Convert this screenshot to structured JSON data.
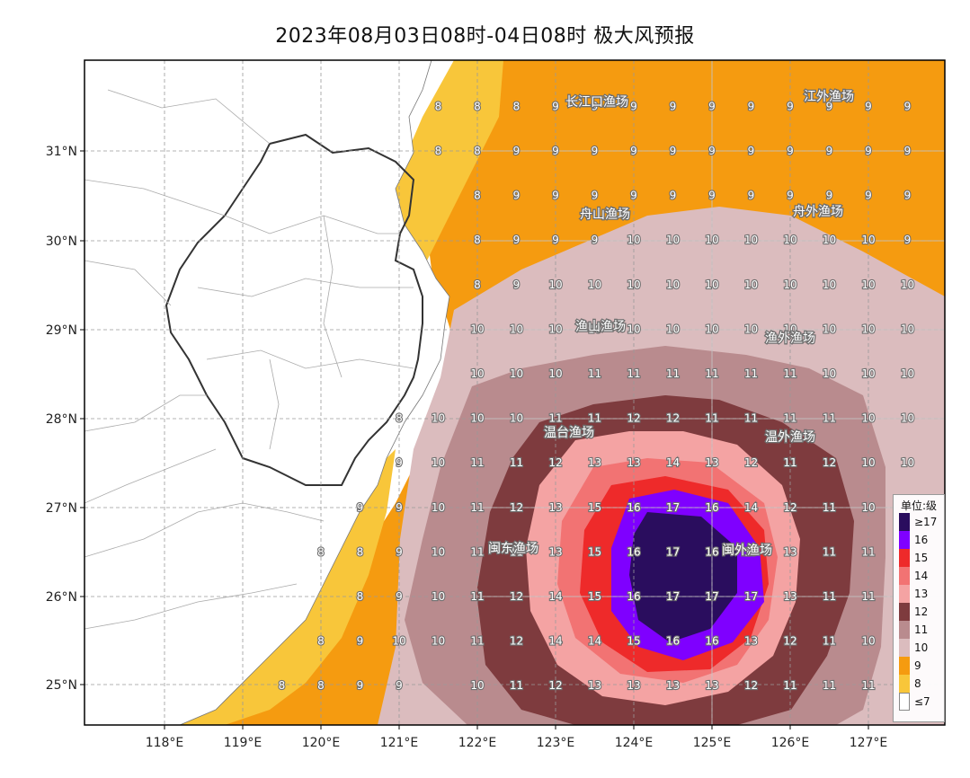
{
  "title": "2023年08月03日08时-04日08时 极大风预报",
  "lon_labels": [
    "118°E",
    "119°E",
    "120°E",
    "121°E",
    "122°E",
    "123°E",
    "124°E",
    "125°E",
    "126°E",
    "127°E"
  ],
  "lat_labels": [
    "31°N",
    "30°N",
    "29°N",
    "28°N",
    "27°N",
    "26°N",
    "25°N"
  ],
  "legend": {
    "title": "单位:级",
    "items": [
      {
        "label": "≥17",
        "color": "#2a0d5e"
      },
      {
        "label": "16",
        "color": "#7f00ff"
      },
      {
        "label": "15",
        "color": "#ee2a2a"
      },
      {
        "label": "14",
        "color": "#f27373"
      },
      {
        "label": "13",
        "color": "#f4a3a3"
      },
      {
        "label": "12",
        "color": "#7e3b3e"
      },
      {
        "label": "11",
        "color": "#b98b8e"
      },
      {
        "label": "10",
        "color": "#dbbcbe"
      },
      {
        "label": "9",
        "color": "#f59b10"
      },
      {
        "label": "8",
        "color": "#f8c63a"
      },
      {
        "label": "≤7",
        "color": "#ffffff"
      }
    ]
  },
  "zones": [
    "长江口渔场",
    "江外渔场",
    "舟山渔场",
    "舟外渔场",
    "渔山渔场",
    "渔外渔场",
    "温台渔场",
    "温外渔场",
    "闽东渔场",
    "闽外渔场"
  ],
  "grid_values": [
    {
      "lon": 121.5,
      "v": [
        8,
        null,
        null,
        null,
        null,
        null,
        null,
        null,
        null,
        null,
        null,
        null,
        null,
        null
      ]
    },
    {
      "lon": 122.0,
      "v": [
        8,
        8,
        8,
        8,
        8,
        10,
        10,
        10,
        11,
        11,
        11,
        11,
        11,
        10
      ]
    },
    {
      "lon": 122.5,
      "v": [
        8,
        9,
        9,
        9,
        9,
        10,
        10,
        10,
        11,
        12,
        11,
        12,
        12,
        11
      ]
    },
    {
      "lon": 123.0,
      "v": [
        9,
        9,
        9,
        9,
        10,
        10,
        10,
        11,
        12,
        13,
        13,
        14,
        14,
        12
      ]
    },
    {
      "lon": 123.5,
      "v": [
        9,
        9,
        9,
        9,
        10,
        10,
        11,
        11,
        13,
        15,
        15,
        15,
        14,
        13
      ]
    },
    {
      "lon": 124.0,
      "v": [
        9,
        9,
        9,
        10,
        10,
        10,
        11,
        12,
        13,
        16,
        16,
        16,
        15,
        13
      ]
    },
    {
      "lon": 124.5,
      "v": [
        9,
        9,
        9,
        10,
        10,
        10,
        11,
        12,
        14,
        17,
        17,
        17,
        16,
        13
      ]
    },
    {
      "lon": 125.0,
      "v": [
        9,
        9,
        9,
        10,
        10,
        10,
        11,
        11,
        13,
        16,
        16,
        17,
        16,
        13
      ]
    },
    {
      "lon": 125.5,
      "v": [
        9,
        9,
        9,
        10,
        10,
        10,
        11,
        11,
        12,
        14,
        15,
        17,
        13,
        12
      ]
    },
    {
      "lon": 126.0,
      "v": [
        9,
        9,
        9,
        10,
        10,
        10,
        11,
        11,
        11,
        12,
        13,
        13,
        12,
        11
      ]
    },
    {
      "lon": 126.5,
      "v": [
        9,
        9,
        9,
        10,
        10,
        10,
        10,
        11,
        12,
        11,
        11,
        11,
        11,
        11
      ]
    },
    {
      "lon": 127.0,
      "v": [
        9,
        9,
        9,
        10,
        10,
        10,
        10,
        10,
        10,
        10,
        11,
        11,
        10,
        11
      ]
    },
    {
      "lon": 127.5,
      "v": [
        9,
        9,
        9,
        9,
        10,
        10,
        10,
        10,
        10,
        null,
        null,
        null,
        null,
        null
      ]
    }
  ],
  "grid_lats": [
    31.5,
    31.0,
    30.5,
    30.0,
    29.5,
    29.0,
    28.5,
    28.0,
    27.5,
    27.0,
    26.5,
    26.0,
    25.5,
    25.0
  ],
  "west_column": [
    {
      "lat": 28.0,
      "lon": 121.0,
      "v": 8
    },
    {
      "lat": 27.5,
      "lon": 121.0,
      "v": 9
    },
    {
      "lat": 27.0,
      "lon": 120.5,
      "v": 9
    },
    {
      "lat": 27.0,
      "lon": 121.0,
      "v": 9
    },
    {
      "lat": 26.5,
      "lon": 120.0,
      "v": 8
    },
    {
      "lat": 26.5,
      "lon": 120.5,
      "v": 8
    },
    {
      "lat": 26.5,
      "lon": 121.0,
      "v": 9
    },
    {
      "lat": 26.0,
      "lon": 120.5,
      "v": 8
    },
    {
      "lat": 26.0,
      "lon": 121.0,
      "v": 9
    },
    {
      "lat": 25.5,
      "lon": 120.0,
      "v": 8
    },
    {
      "lat": 25.5,
      "lon": 120.5,
      "v": 9
    },
    {
      "lat": 25.5,
      "lon": 121.0,
      "v": 10
    },
    {
      "lat": 25.0,
      "lon": 119.5,
      "v": 8
    },
    {
      "lat": 25.0,
      "lon": 120.0,
      "v": 8
    },
    {
      "lat": 25.0,
      "lon": 120.5,
      "v": 9
    },
    {
      "lat": 25.0,
      "lon": 121.0,
      "v": 9
    },
    {
      "lat": 28.0,
      "lon": 121.5,
      "v": 10
    },
    {
      "lat": 27.5,
      "lon": 121.5,
      "v": 10
    },
    {
      "lat": 27.0,
      "lon": 121.5,
      "v": 10
    },
    {
      "lat": 26.5,
      "lon": 121.5,
      "v": 10
    },
    {
      "lat": 26.0,
      "lon": 121.5,
      "v": 10
    },
    {
      "lat": 25.5,
      "lon": 121.5,
      "v": 10
    },
    {
      "lat": 31.0,
      "lon": 121.5,
      "v": 8
    }
  ]
}
